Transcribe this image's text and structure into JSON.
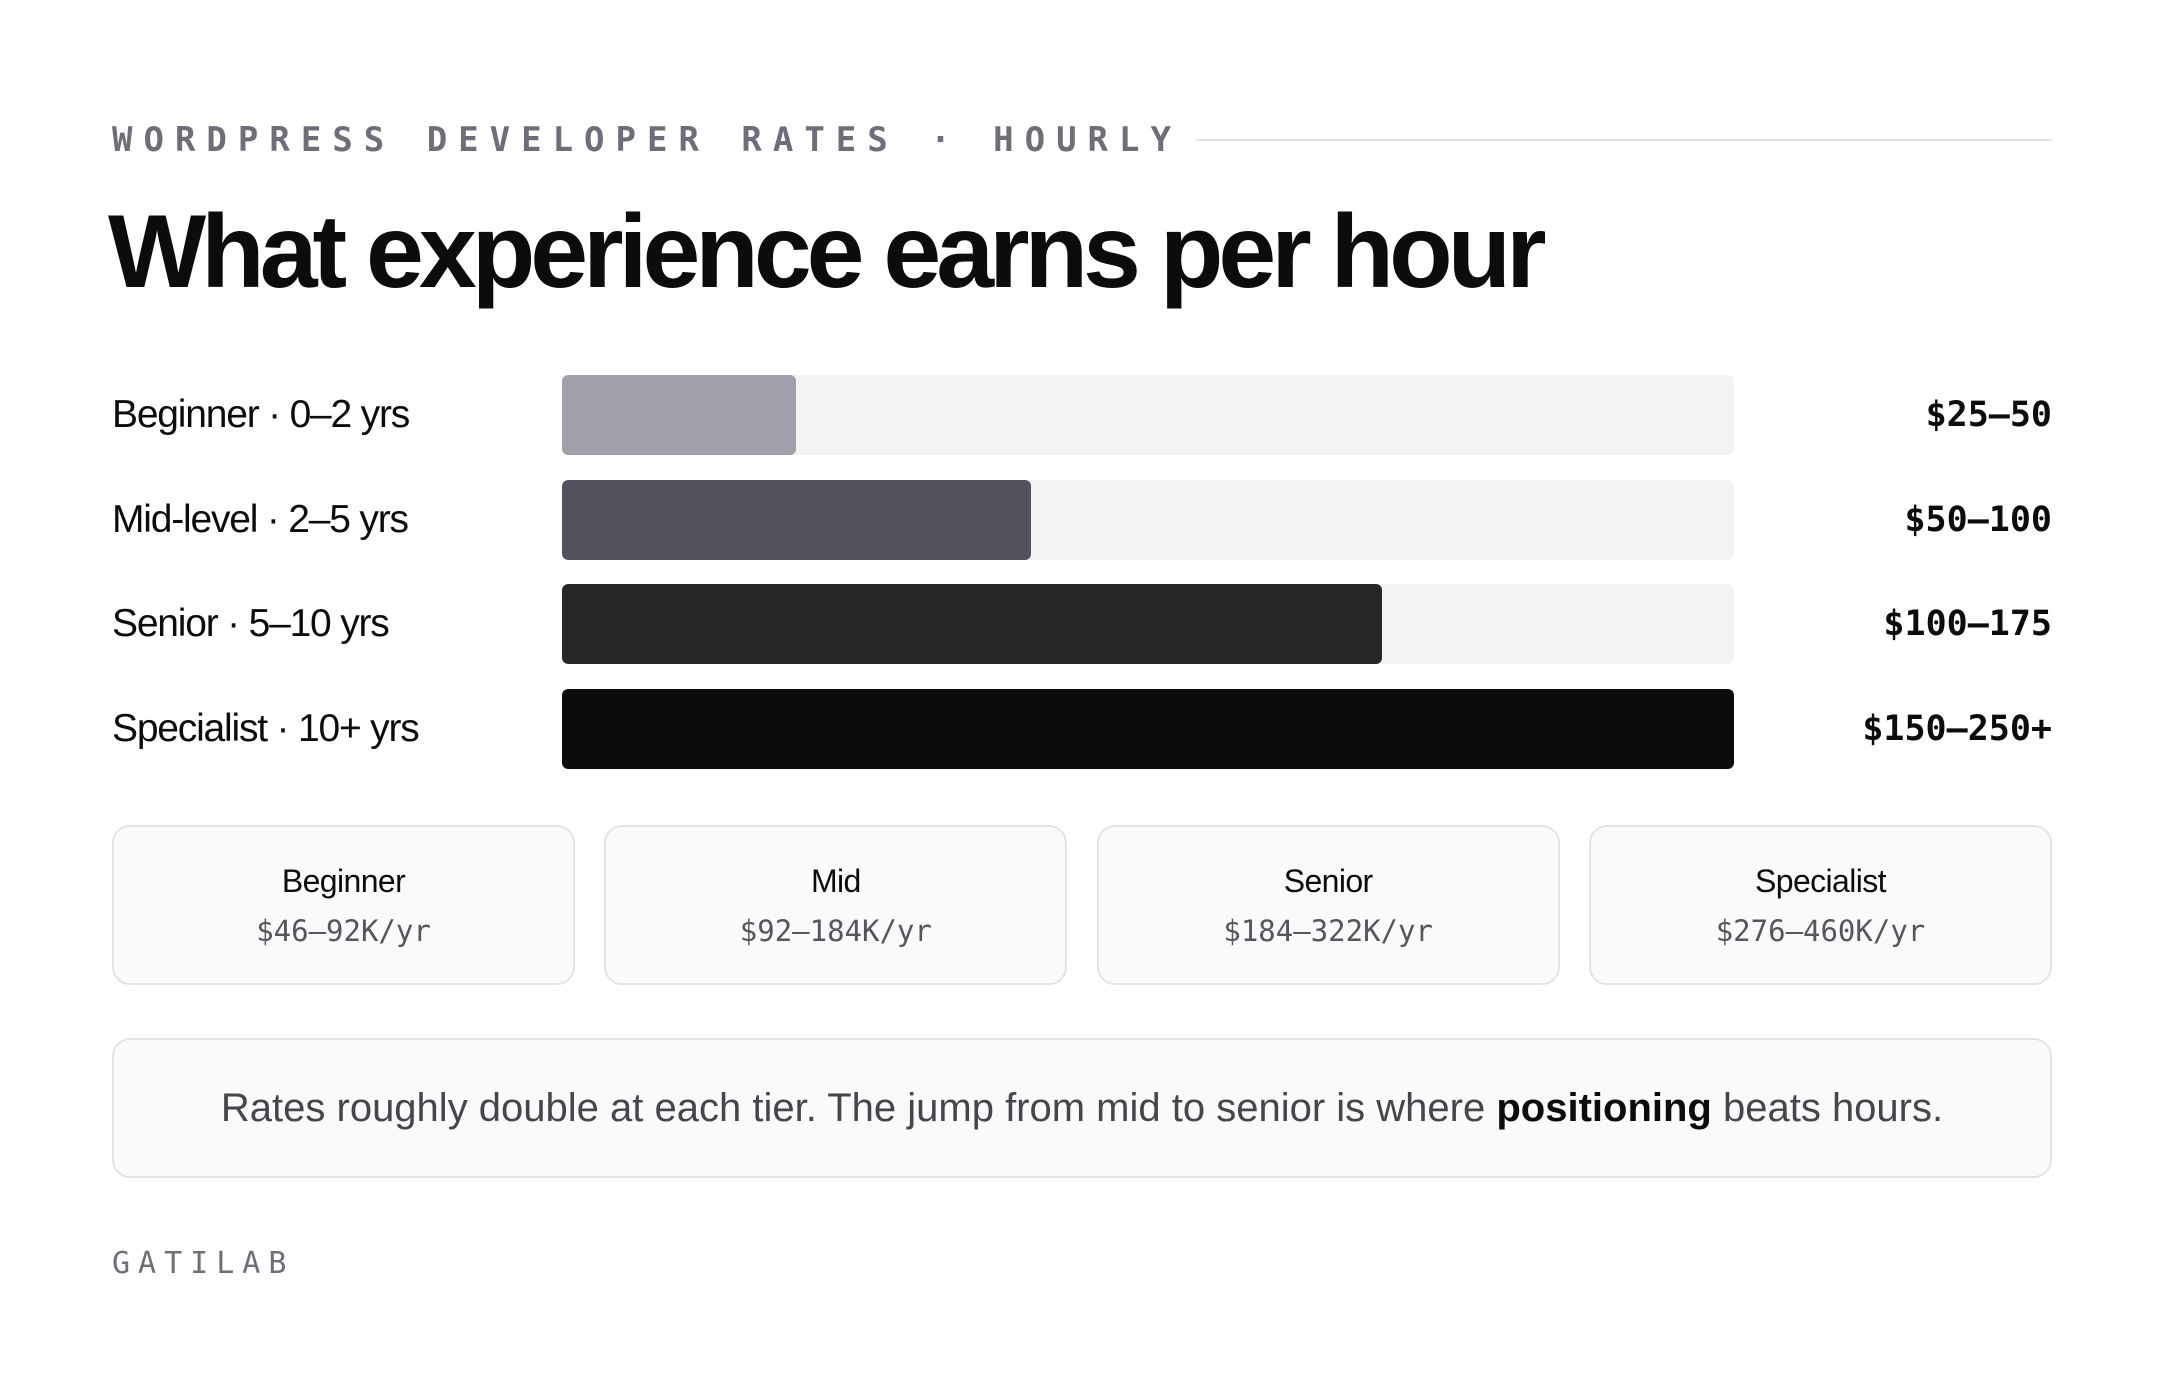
{
  "header": {
    "eyebrow": "WORDPRESS DEVELOPER RATES · HOURLY",
    "title": "What experience earns per hour"
  },
  "chart_data": {
    "type": "bar",
    "orientation": "horizontal",
    "unit": "USD per hour",
    "categories": [
      "Beginner · 0–2 yrs",
      "Mid-level · 2–5 yrs",
      "Senior · 5–10 yrs",
      "Specialist · 10+ yrs"
    ],
    "value_labels": [
      "$25–50",
      "$50–100",
      "$100–175",
      "$150–250+"
    ],
    "values": [
      50,
      100,
      175,
      250
    ],
    "xlim": [
      0,
      250
    ],
    "colors": [
      "#a0a0aa",
      "#52525c",
      "#27272a",
      "#0c0c0e"
    ],
    "track_color": "#f3f3f4",
    "grid": false
  },
  "cards": [
    {
      "name": "Beginner",
      "salary": "$46–92K/yr"
    },
    {
      "name": "Mid",
      "salary": "$92–184K/yr"
    },
    {
      "name": "Senior",
      "salary": "$184–322K/yr"
    },
    {
      "name": "Specialist",
      "salary": "$276–460K/yr"
    }
  ],
  "note": {
    "before": "Rates roughly double at each tier. The jump from mid to senior is where ",
    "emphasis": "positioning",
    "after": " beats hours."
  },
  "footer": {
    "brand": "GATILAB"
  }
}
